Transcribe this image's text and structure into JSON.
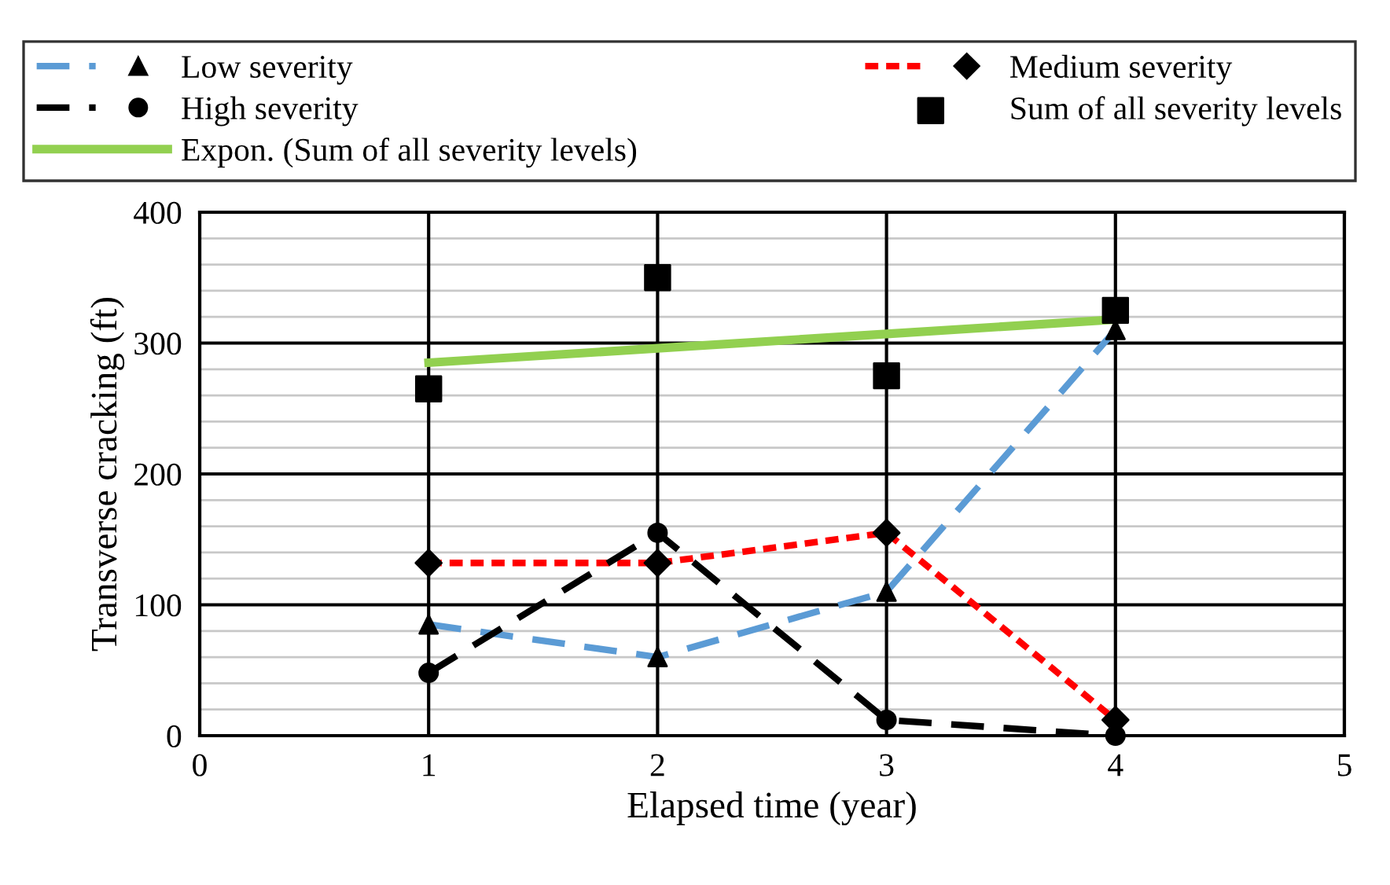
{
  "chart_data": {
    "type": "line",
    "xlabel": "Elapsed time (year)",
    "ylabel": "Transverse cracking (ft)",
    "xlim": [
      0,
      5
    ],
    "xticks": [
      0,
      1,
      2,
      3,
      4,
      5
    ],
    "ylim": [
      0,
      400
    ],
    "yticks": [
      0,
      {
        "value": 20,
        "label": null
      },
      {
        "value": 40,
        "label": null
      },
      {
        "value": 60,
        "label": null
      },
      {
        "value": 80,
        "label": null
      },
      100,
      {
        "value": 120,
        "label": null
      },
      {
        "value": 140,
        "label": null
      },
      {
        "value": 160,
        "label": null
      },
      {
        "value": 180,
        "label": null
      },
      200,
      {
        "value": 220,
        "label": null
      },
      {
        "value": 240,
        "label": null
      },
      {
        "value": 260,
        "label": null
      },
      {
        "value": 280,
        "label": null
      },
      300,
      {
        "value": 320,
        "label": null
      },
      {
        "value": 340,
        "label": null
      },
      {
        "value": 360,
        "label": null
      },
      {
        "value": 380,
        "label": null
      },
      400
    ],
    "grid": true,
    "legend": "top",
    "series": [
      {
        "name": "Low severity",
        "color": "#5b9bd5",
        "x": [
          1,
          2,
          3,
          4
        ],
        "values": [
          85,
          60,
          110,
          310
        ],
        "marker": "triangle",
        "line_style": "dashed"
      },
      {
        "name": "Medium severity",
        "color": "#ff0000",
        "x": [
          1,
          2,
          3,
          4
        ],
        "values": [
          132,
          132,
          155,
          12
        ],
        "marker": "diamond",
        "line_style": "dotted"
      },
      {
        "name": "High severity",
        "color": "#000000",
        "x": [
          1,
          2,
          3,
          4
        ],
        "values": [
          48,
          155,
          12,
          0
        ],
        "marker": "circle",
        "line_style": "dashed"
      },
      {
        "name": "Sum of all severity levels",
        "type": "scatter",
        "color": "#000000",
        "x": [
          1,
          2,
          3,
          4
        ],
        "values": [
          265,
          350,
          275,
          325
        ],
        "marker": "square"
      },
      {
        "name": "Expon. (Sum of all severity levels)",
        "color": "#92d050",
        "x": [
          1,
          2,
          3,
          4
        ],
        "values": [
          285,
          296,
          307,
          318
        ],
        "marker": "none",
        "line_style": "solid"
      }
    ]
  }
}
